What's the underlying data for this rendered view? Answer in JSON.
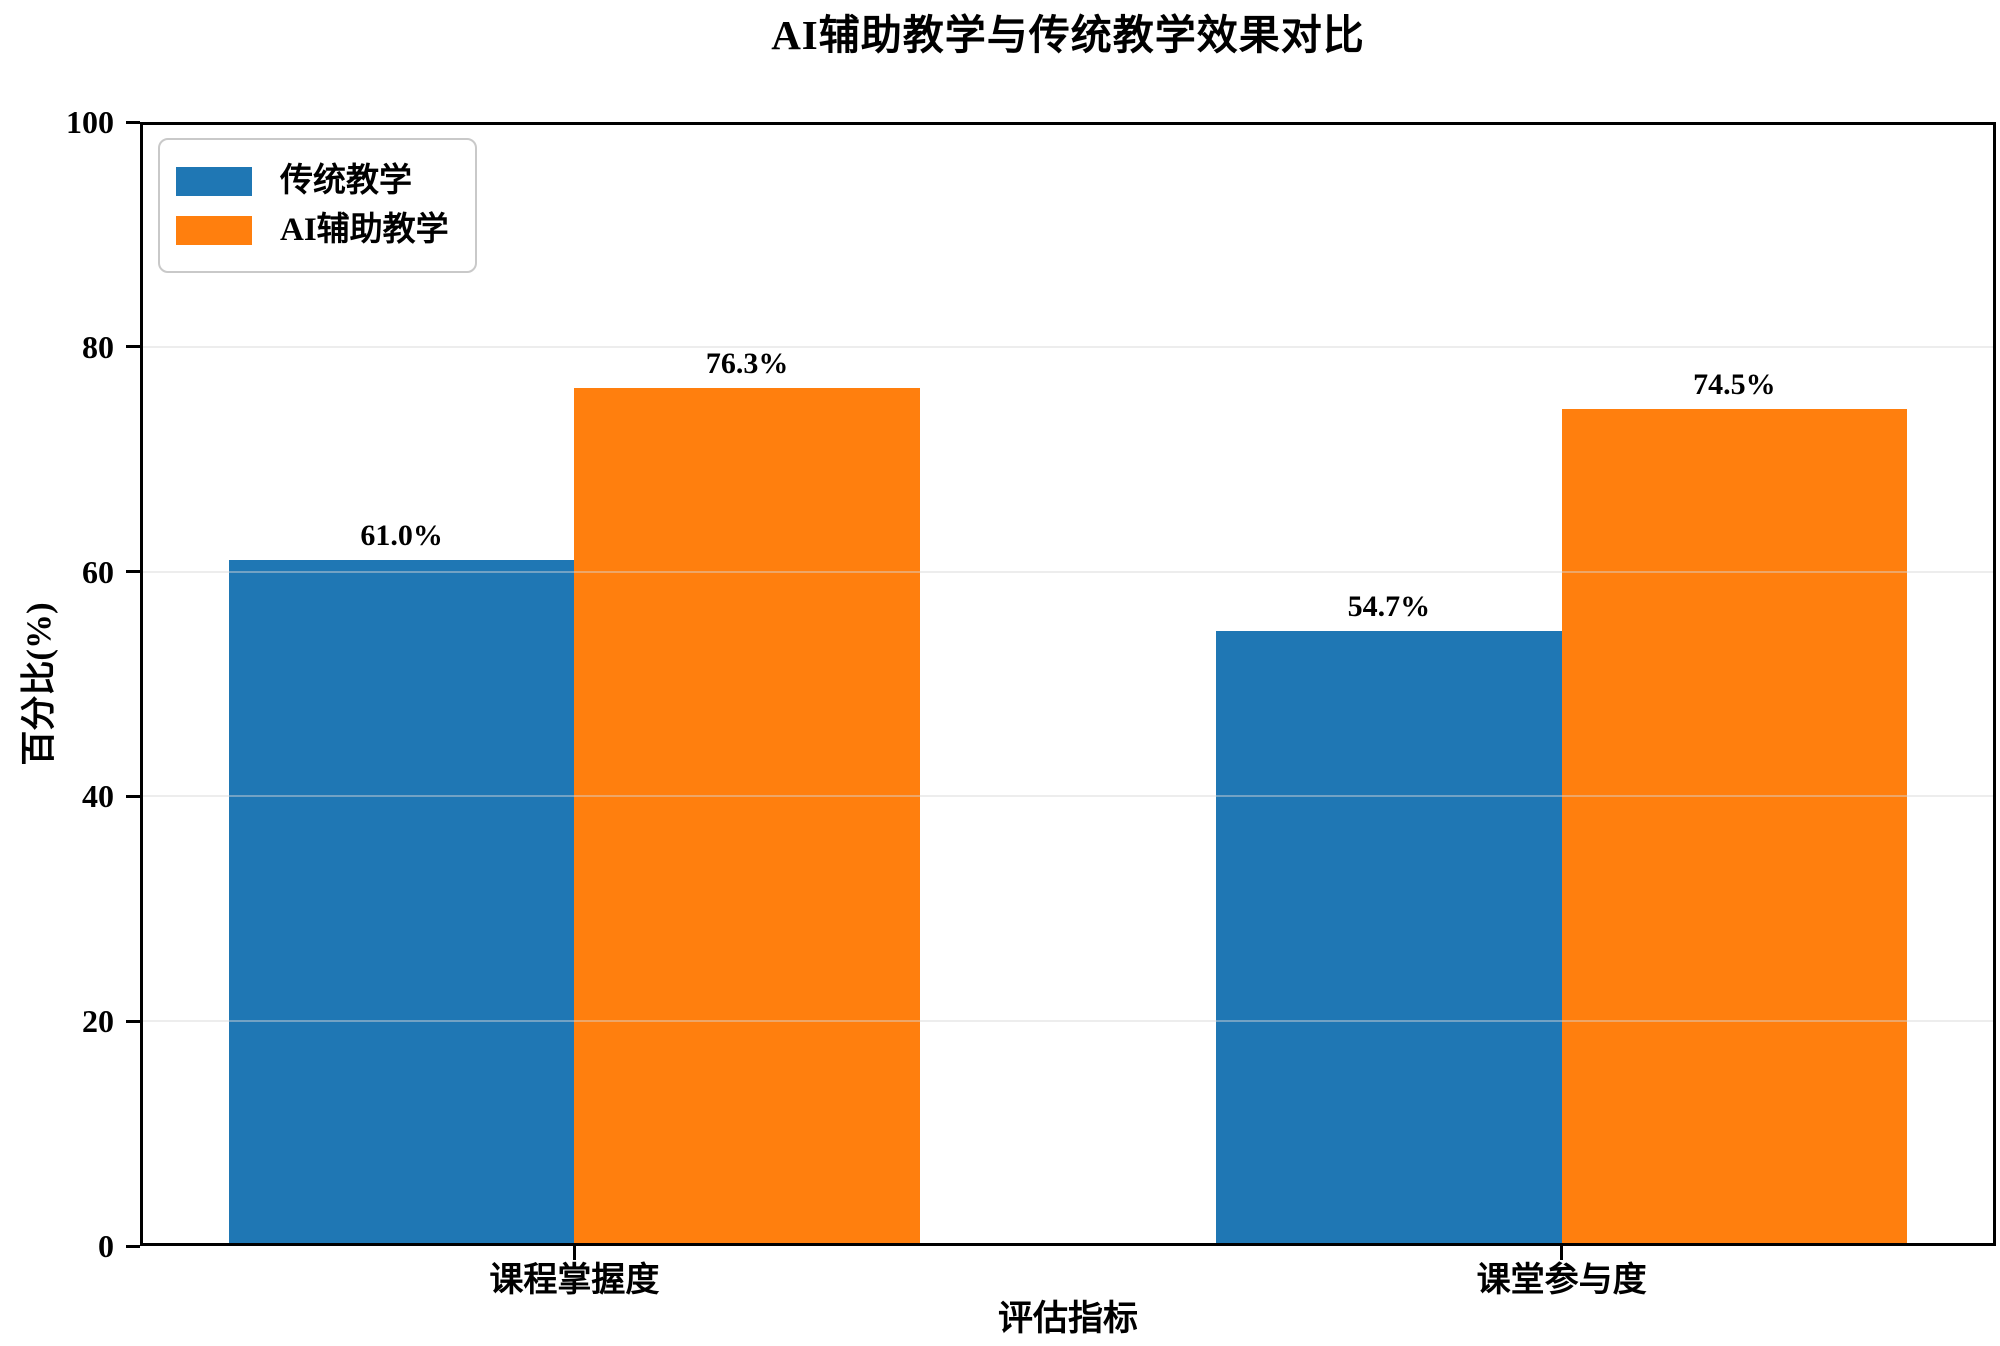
{
  "chart_data": {
    "type": "bar",
    "title": "AI辅助教学与传统教学效果对比",
    "xlabel": "评估指标",
    "ylabel": "百分比(%)",
    "categories": [
      "课程掌握度",
      "课堂参与度"
    ],
    "series": [
      {
        "name": "传统教学",
        "color": "#1f77b4",
        "values": [
          61.0,
          54.7
        ],
        "labels": [
          "61.0%",
          "54.7%"
        ]
      },
      {
        "name": "AI辅助教学",
        "color": "#ff7f0e",
        "values": [
          76.3,
          74.5
        ],
        "labels": [
          "76.3%",
          "74.5%"
        ]
      }
    ],
    "ylim": [
      0,
      100
    ],
    "yticks": [
      0,
      20,
      40,
      60,
      80,
      100
    ],
    "grid": "horizontal-faint",
    "legend_position": "upper-left",
    "bar_width_units": 0.35,
    "xlim": [
      -0.44,
      1.44
    ],
    "spine_color": "#000000",
    "background_color": "#ffffff"
  }
}
